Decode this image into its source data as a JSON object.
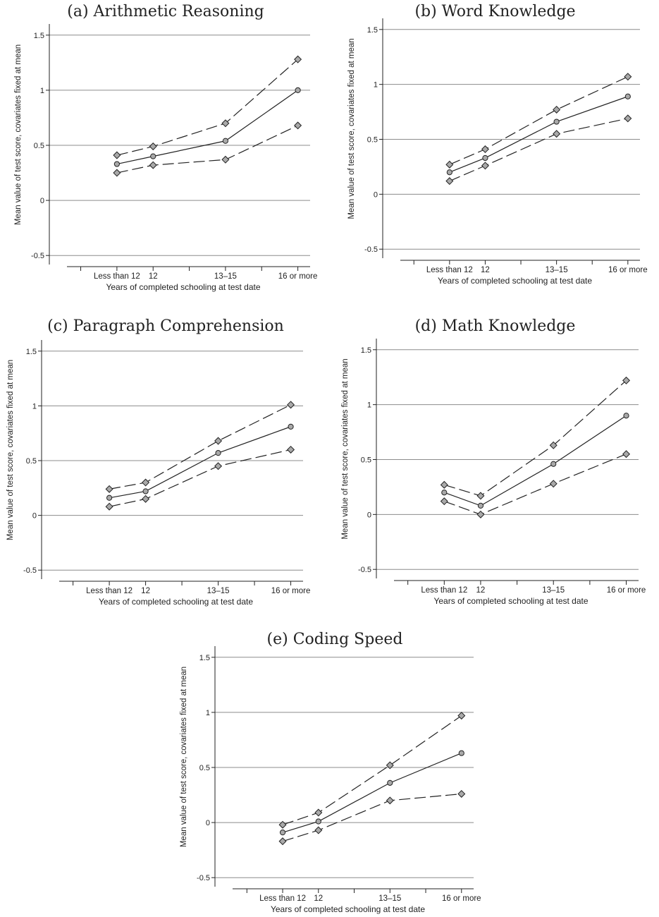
{
  "chart_data": [
    {
      "type": "line",
      "title": "(a) Arithmetic Reasoning",
      "xlabel": "Years of completed schooling at test date",
      "ylabel": "Mean value of test score, covariates fixed at mean",
      "categories": [
        "Less than 12",
        "12",
        "13–15",
        "16 or more"
      ],
      "x": [
        11,
        12,
        14,
        16
      ],
      "xlim": [
        9.6,
        16.3
      ],
      "ylim": [
        -0.55,
        1.55
      ],
      "yticks": [
        "-0.5",
        "0",
        "0.5",
        "1",
        "1.5"
      ],
      "grid": true,
      "series": [
        {
          "role": "upper",
          "style": "dashed",
          "marker": "diamond",
          "values": [
            0.41,
            0.49,
            0.7,
            1.28
          ]
        },
        {
          "role": "mean",
          "style": "solid",
          "marker": "circle",
          "values": [
            0.33,
            0.4,
            0.54,
            1.0
          ]
        },
        {
          "role": "lower",
          "style": "dashed",
          "marker": "diamond",
          "values": [
            0.25,
            0.32,
            0.37,
            0.68
          ]
        }
      ]
    },
    {
      "type": "line",
      "title": "(b) Word Knowledge",
      "xlabel": "Years of completed schooling at test date",
      "ylabel": "Mean value of test score, covariates fixed at mean",
      "categories": [
        "Less than 12",
        "12",
        "13–15",
        "16 or more"
      ],
      "x": [
        11,
        12,
        14,
        16
      ],
      "xlim": [
        9.6,
        16.3
      ],
      "ylim": [
        -0.55,
        1.55
      ],
      "yticks": [
        "-0.5",
        "0",
        "0.5",
        "1",
        "1.5"
      ],
      "grid": true,
      "series": [
        {
          "role": "upper",
          "style": "dashed",
          "marker": "diamond",
          "values": [
            0.27,
            0.41,
            0.77,
            1.07
          ]
        },
        {
          "role": "mean",
          "style": "solid",
          "marker": "circle",
          "values": [
            0.2,
            0.33,
            0.66,
            0.89
          ]
        },
        {
          "role": "lower",
          "style": "dashed",
          "marker": "diamond",
          "values": [
            0.12,
            0.26,
            0.55,
            0.69
          ]
        }
      ]
    },
    {
      "type": "line",
      "title": "(c) Paragraph Comprehension",
      "xlabel": "Years of completed schooling at test date",
      "ylabel": "Mean value of test score, covariates fixed at mean",
      "categories": [
        "Less than 12",
        "12",
        "13–15",
        "16 or more"
      ],
      "x": [
        11,
        12,
        14,
        16
      ],
      "xlim": [
        9.6,
        16.3
      ],
      "ylim": [
        -0.55,
        1.55
      ],
      "yticks": [
        "-0.5",
        "0",
        "0.5",
        "1",
        "1.5"
      ],
      "grid": true,
      "series": [
        {
          "role": "upper",
          "style": "dashed",
          "marker": "diamond",
          "values": [
            0.24,
            0.3,
            0.68,
            1.01
          ]
        },
        {
          "role": "mean",
          "style": "solid",
          "marker": "circle",
          "values": [
            0.16,
            0.22,
            0.57,
            0.81
          ]
        },
        {
          "role": "lower",
          "style": "dashed",
          "marker": "diamond",
          "values": [
            0.08,
            0.15,
            0.45,
            0.6
          ]
        }
      ]
    },
    {
      "type": "line",
      "title": "(d) Math Knowledge",
      "xlabel": "Years of completed schooling at test date",
      "ylabel": "Mean value of test score, covariates fixed at mean",
      "categories": [
        "Less than 12",
        "12",
        "13–15",
        "16 or more"
      ],
      "x": [
        11,
        12,
        14,
        16
      ],
      "xlim": [
        9.6,
        16.3
      ],
      "ylim": [
        -0.55,
        1.55
      ],
      "yticks": [
        "-0.5",
        "0",
        "0.5",
        "1",
        "1.5"
      ],
      "grid": true,
      "series": [
        {
          "role": "upper",
          "style": "dashed",
          "marker": "diamond",
          "values": [
            0.27,
            0.17,
            0.63,
            1.22
          ]
        },
        {
          "role": "mean",
          "style": "solid",
          "marker": "circle",
          "values": [
            0.2,
            0.08,
            0.46,
            0.9
          ]
        },
        {
          "role": "lower",
          "style": "dashed",
          "marker": "diamond",
          "values": [
            0.12,
            0.0,
            0.28,
            0.55
          ]
        }
      ]
    },
    {
      "type": "line",
      "title": "(e) Coding Speed",
      "xlabel": "Years of completed schooling at test date",
      "ylabel": "Mean value of test score, covariates fixed at mean",
      "categories": [
        "Less than 12",
        "12",
        "13–15",
        "16 or more"
      ],
      "x": [
        11,
        12,
        14,
        16
      ],
      "xlim": [
        9.6,
        16.3
      ],
      "ylim": [
        -0.55,
        1.55
      ],
      "yticks": [
        "-0.5",
        "0",
        "0.5",
        "1",
        "1.5"
      ],
      "grid": true,
      "series": [
        {
          "role": "upper",
          "style": "dashed",
          "marker": "diamond",
          "values": [
            -0.02,
            0.09,
            0.52,
            0.97
          ]
        },
        {
          "role": "mean",
          "style": "solid",
          "marker": "circle",
          "values": [
            -0.09,
            0.01,
            0.36,
            0.63
          ]
        },
        {
          "role": "lower",
          "style": "dashed",
          "marker": "diamond",
          "values": [
            -0.17,
            -0.07,
            0.2,
            0.26
          ]
        }
      ]
    }
  ],
  "colors": {
    "line": "#222222",
    "marker_fill": "#a9a9a9",
    "grid": "#8c8c8c"
  }
}
